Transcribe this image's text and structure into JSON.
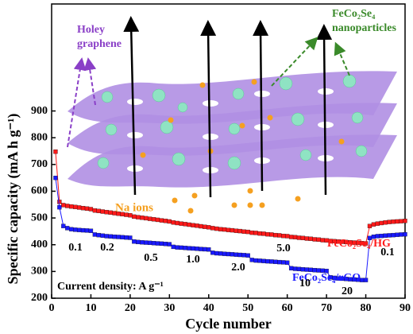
{
  "chart_data": {
    "type": "line",
    "xlabel": "Cycle number",
    "ylabel": "Specific capacity (mA h g⁻¹)",
    "xlim": [
      0,
      90
    ],
    "xticks": [
      0,
      10,
      20,
      30,
      40,
      50,
      60,
      70,
      80,
      90
    ],
    "ylim": [
      200,
      1300
    ],
    "yticks": [
      200,
      300,
      400,
      500,
      600,
      700,
      800,
      900
    ],
    "x": [
      1,
      2,
      3,
      4,
      5,
      6,
      7,
      8,
      9,
      10,
      11,
      12,
      13,
      14,
      15,
      16,
      17,
      18,
      19,
      20,
      21,
      22,
      23,
      24,
      25,
      26,
      27,
      28,
      29,
      30,
      31,
      32,
      33,
      34,
      35,
      36,
      37,
      38,
      39,
      40,
      41,
      42,
      43,
      44,
      45,
      46,
      47,
      48,
      49,
      50,
      51,
      52,
      53,
      54,
      55,
      56,
      57,
      58,
      59,
      60,
      61,
      62,
      63,
      64,
      65,
      66,
      67,
      68,
      69,
      70,
      71,
      72,
      73,
      74,
      75,
      76,
      77,
      78,
      79,
      80,
      81,
      82,
      83,
      84,
      85,
      86,
      87,
      88,
      89,
      90
    ],
    "series": [
      {
        "name": "FeCo₂Se₄/HG",
        "color": "#ff1a1a",
        "values": [
          748,
          560,
          548,
          545,
          543,
          541,
          539,
          537,
          535,
          533,
          528,
          526,
          524,
          522,
          520,
          518,
          516,
          514,
          512,
          510,
          505,
          503,
          501,
          499,
          497,
          495,
          493,
          491,
          489,
          487,
          483,
          481,
          479,
          477,
          475,
          473,
          471,
          469,
          467,
          465,
          462,
          460,
          458,
          457,
          455,
          454,
          452,
          451,
          449,
          448,
          445,
          444,
          442,
          441,
          439,
          438,
          436,
          435,
          433,
          432,
          429,
          428,
          426,
          425,
          423,
          422,
          420,
          419,
          417,
          416,
          414,
          413,
          412,
          411,
          410,
          409,
          408,
          407,
          406,
          405,
          470,
          476,
          479,
          481,
          483,
          485,
          486,
          487,
          488,
          489
        ]
      },
      {
        "name": "FeCo₂Se₄/rGO",
        "color": "#1a1aff",
        "values": [
          650,
          540,
          470,
          462,
          458,
          456,
          455,
          454,
          453,
          452,
          438,
          436,
          434,
          432,
          431,
          430,
          429,
          428,
          427,
          426,
          412,
          410,
          409,
          408,
          407,
          406,
          405,
          404,
          403,
          402,
          392,
          390,
          389,
          388,
          387,
          386,
          385,
          384,
          383,
          382,
          370,
          368,
          367,
          366,
          365,
          364,
          363,
          362,
          361,
          360,
          343,
          341,
          340,
          339,
          338,
          337,
          336,
          335,
          334,
          333,
          312,
          310,
          309,
          308,
          307,
          306,
          305,
          304,
          303,
          302,
          278,
          276,
          274,
          273,
          272,
          271,
          270,
          269,
          268,
          268,
          425,
          430,
          432,
          433,
          434,
          435,
          436,
          437,
          438,
          439
        ]
      }
    ],
    "rate_labels": [
      "0.1",
      "0.2",
      "0.5",
      "1.0",
      "2.0",
      "5.0",
      "10",
      "20",
      "0.1"
    ],
    "current_density": "Current density: A g⁻¹",
    "holey_graphene": [
      "Holey",
      "graphene"
    ],
    "nanoparticles": [
      "FeCo₂Se₄",
      "nanoparticles"
    ],
    "na_ions": "Na ions"
  }
}
